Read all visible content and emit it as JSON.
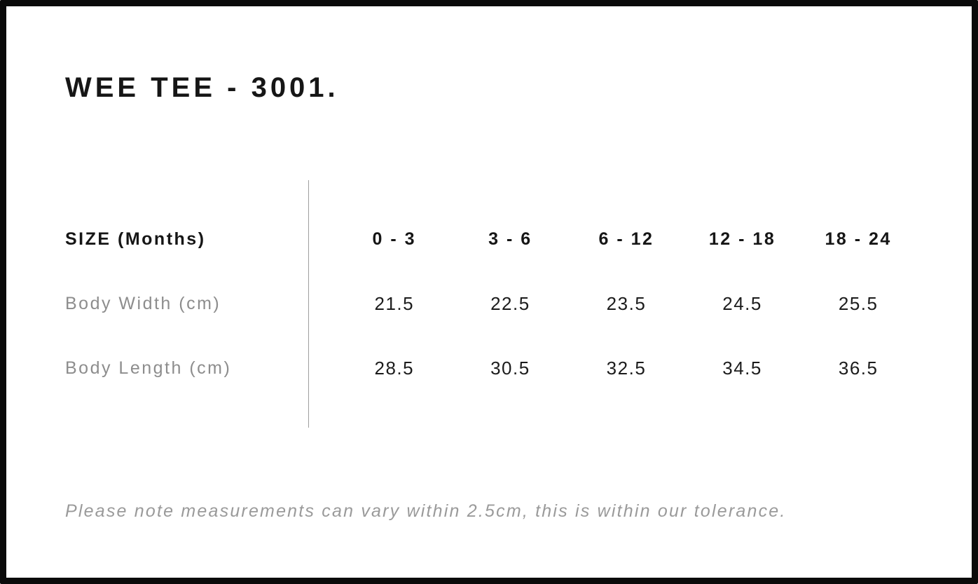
{
  "page": {
    "title": "WEE TEE - 3001.",
    "footnote": "Please note measurements can vary within 2.5cm, this is within our tolerance."
  },
  "size_chart": {
    "header_label": "SIZE (Months)",
    "columns": [
      "0 - 3",
      "3 - 6",
      "6 - 12",
      "12 - 18",
      "18 - 24"
    ],
    "rows": [
      {
        "label": "Body Width (cm)",
        "values": [
          "21.5",
          "22.5",
          "23.5",
          "24.5",
          "25.5"
        ]
      },
      {
        "label": "Body Length (cm)",
        "values": [
          "28.5",
          "30.5",
          "32.5",
          "34.5",
          "36.5"
        ]
      }
    ]
  },
  "colors": {
    "page_border": "#0a0a0a",
    "text_primary": "#161616",
    "text_values": "#1c1c1c",
    "text_muted": "#8d8d8d",
    "footnote_text": "#9a9a9a",
    "divider": "#9e9e9e",
    "background": "#ffffff"
  }
}
